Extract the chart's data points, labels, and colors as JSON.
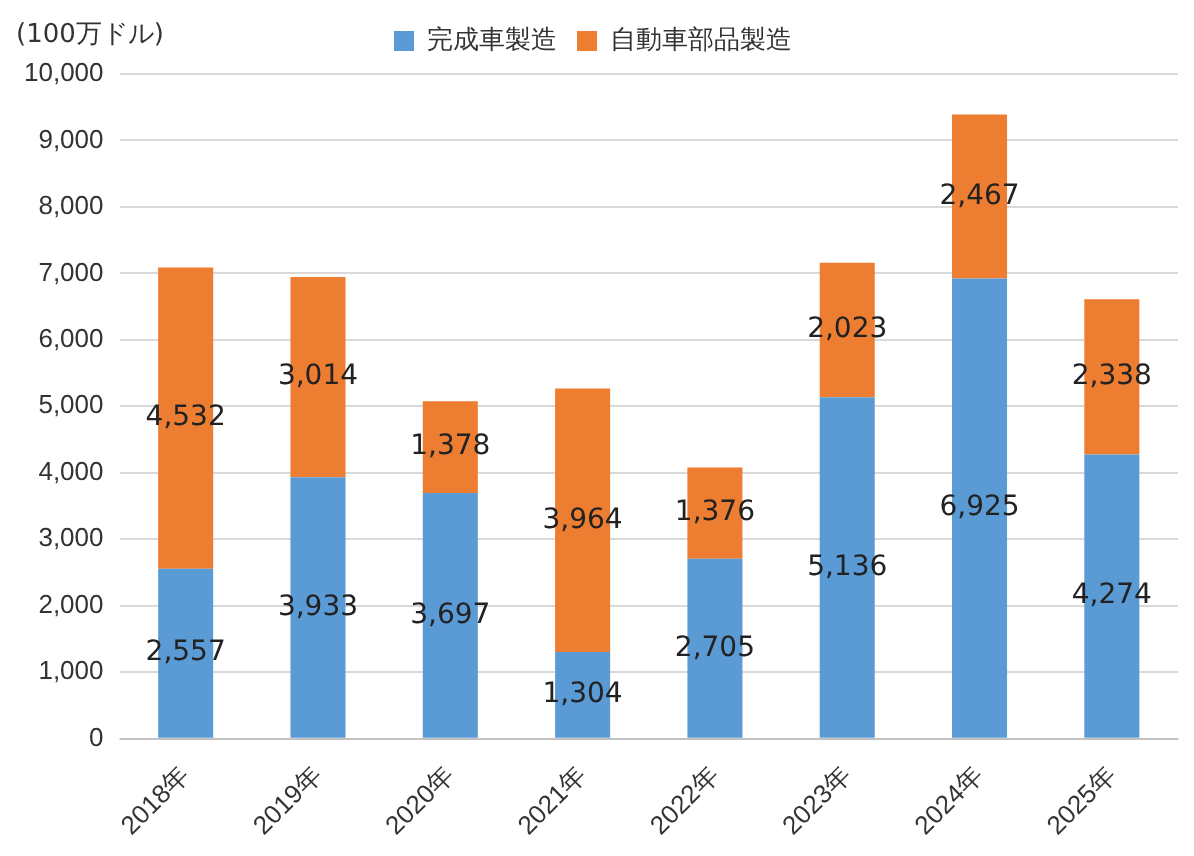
{
  "chart_data": {
    "type": "bar",
    "stacked": true,
    "ylabel": "(100万ドル)",
    "legend": "top",
    "grid": "y",
    "categories": [
      "2018年",
      "2019年",
      "2020年",
      "2021年",
      "2022年",
      "2023年",
      "2024年",
      "2025年"
    ],
    "series": [
      {
        "name": "完成車製造",
        "color": "#5b9bd5",
        "values": [
          2557,
          3933,
          3697,
          1304,
          2705,
          5136,
          6925,
          4274
        ],
        "value_labels": [
          "2,557",
          "3,933",
          "3,697",
          "1,304",
          "2,705",
          "5,136",
          "6,925",
          "4,274"
        ]
      },
      {
        "name": "自動車部品製造",
        "color": "#ed7d31",
        "values": [
          4532,
          3014,
          1378,
          3964,
          1376,
          2023,
          2467,
          2338
        ],
        "value_labels": [
          "4,532",
          "3,014",
          "1,378",
          "3,964",
          "1,376",
          "2,023",
          "2,467",
          "2,338"
        ]
      }
    ],
    "ylim": [
      0,
      10000
    ],
    "yticks": [
      0,
      {
        "value": 1000,
        "label": "1,000"
      },
      {
        "value": 2000,
        "label": "2,000"
      },
      {
        "value": 3000,
        "label": "3,000"
      },
      {
        "value": 4000,
        "label": "4,000"
      },
      {
        "value": 5000,
        "label": "5,000"
      },
      {
        "value": 6000,
        "label": "6,000"
      },
      {
        "value": 7000,
        "label": "7,000"
      },
      {
        "value": 8000,
        "label": "8,000"
      },
      {
        "value": 9000,
        "label": "9,000"
      },
      {
        "value": 10000,
        "label": "10,000"
      }
    ]
  }
}
